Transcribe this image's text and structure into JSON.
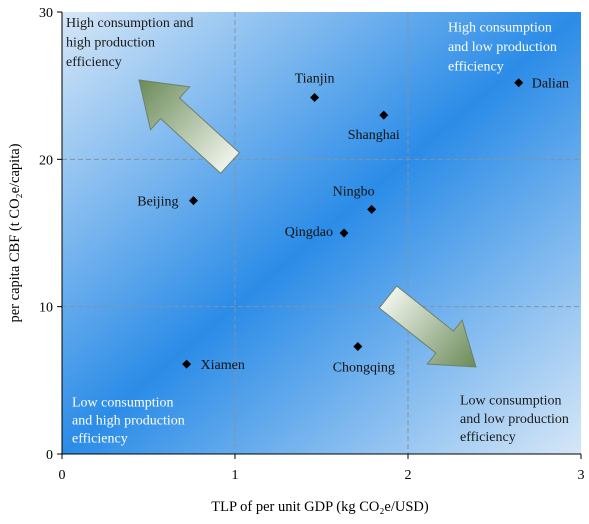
{
  "chart_data": {
    "type": "scatter",
    "xlabel": "TLP of per unit GDP (kg CO₂e/USD)",
    "ylabel": "per capita CBF (t CO₂e/capita)",
    "xlim": [
      0,
      3
    ],
    "ylim": [
      0,
      30
    ],
    "xticks": [
      0,
      1,
      2,
      3
    ],
    "yticks": [
      0,
      10,
      20,
      30
    ],
    "grid": true,
    "points": [
      {
        "label": "Tianjin",
        "x": 1.46,
        "y": 24.2
      },
      {
        "label": "Shanghai",
        "x": 1.86,
        "y": 23.0
      },
      {
        "label": "Dalian",
        "x": 2.64,
        "y": 25.2
      },
      {
        "label": "Beijing",
        "x": 0.76,
        "y": 17.2
      },
      {
        "label": "Ningbo",
        "x": 1.79,
        "y": 16.6
      },
      {
        "label": "Qingdao",
        "x": 1.63,
        "y": 15.0
      },
      {
        "label": "Xiamen",
        "x": 0.72,
        "y": 6.1
      },
      {
        "label": "Chongqing",
        "x": 1.71,
        "y": 7.3
      }
    ],
    "annotations": [
      {
        "lines": [
          "High consumption and",
          "high production",
          "efficiency"
        ],
        "color": "#1a1a1a"
      },
      {
        "lines": [
          "High consumption",
          "and low production",
          "efficiency"
        ],
        "color": "#ffffff"
      },
      {
        "lines": [
          "Low consumption",
          "and high production",
          "efficiency"
        ],
        "color": "#ffffff"
      },
      {
        "lines": [
          "Low consumption",
          "and low production",
          "efficiency"
        ],
        "color": "#1a1a1a"
      }
    ],
    "colors": {
      "marker": "#000000",
      "background_edge": "#d6e7f7",
      "background_center": "#2b8ce7",
      "arrow_light": "#eef3ea",
      "arrow_dark": "#6a8a58",
      "arrow_stroke": "#6f8068",
      "grid": "#8492a3"
    }
  }
}
